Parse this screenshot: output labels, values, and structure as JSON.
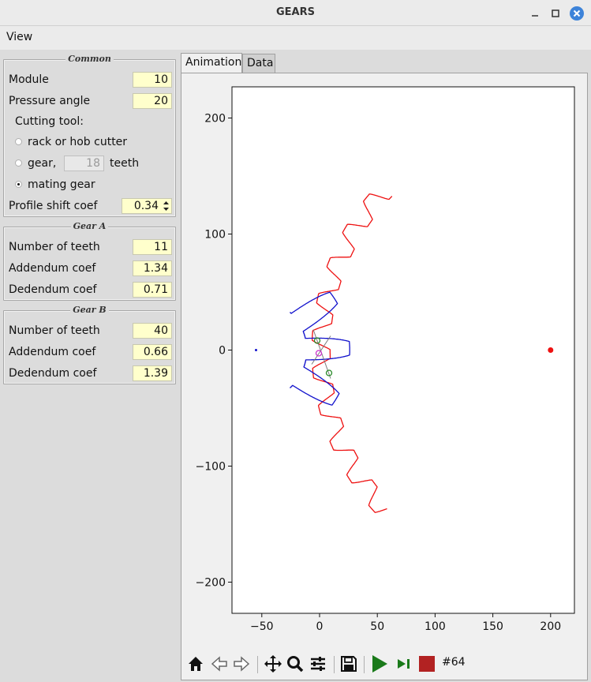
{
  "window": {
    "title": "GEARS"
  },
  "menu": {
    "view_label": "View"
  },
  "common": {
    "title": "Common",
    "module_label": "Module",
    "module_value": "10",
    "pressure_label": "Pressure angle",
    "pressure_value": "20",
    "cutting_tool_label": "Cutting tool:",
    "rack_label": "rack or hob cutter",
    "gear_label": "gear,",
    "gear_teeth_value": "18",
    "teeth_label": "teeth",
    "mating_label": "mating gear",
    "selected_tool": "mating gear",
    "profile_shift_label": "Profile shift coef",
    "profile_shift_value": "0.34"
  },
  "gear_a": {
    "title": "Gear A",
    "teeth_label": "Number of teeth",
    "teeth_value": "11",
    "addendum_label": "Addendum coef",
    "addendum_value": "1.34",
    "dedendum_label": "Dedendum coef",
    "dedendum_value": "0.71"
  },
  "gear_b": {
    "title": "Gear B",
    "teeth_label": "Number of teeth",
    "teeth_value": "40",
    "addendum_label": "Addendum coef",
    "addendum_value": "0.66",
    "dedendum_label": "Dedendum coef",
    "dedendum_value": "1.39"
  },
  "tabs": [
    {
      "label": "Animation",
      "active": true
    },
    {
      "label": "Data",
      "active": false
    }
  ],
  "toolbar": {
    "frame_label": "#64"
  },
  "icons": [
    "home-icon",
    "back-icon",
    "forward-icon",
    "pan-icon",
    "zoom-icon",
    "configure-icon",
    "save-icon",
    "play-icon",
    "step-icon",
    "stop-icon"
  ],
  "colors": {
    "gear_b": "#ee1111",
    "gear_a": "#1111cc",
    "field_bg": "#ffffcc",
    "play": "#1a7a1a",
    "stop": "#b22222"
  },
  "chart_data": {
    "type": "line",
    "xlim": [
      -75,
      220
    ],
    "ylim": [
      -225,
      225
    ],
    "xticks": [
      -50,
      0,
      50,
      100,
      150,
      200
    ],
    "yticks": [
      -200,
      -100,
      0,
      100,
      200
    ],
    "xtick_labels": [
      "−50",
      "0",
      "50",
      "100",
      "150",
      "200"
    ],
    "ytick_labels": [
      "−200",
      "−100",
      "0",
      "100",
      "200"
    ],
    "grid": false,
    "centers": [
      {
        "x": -55,
        "y": 0
      },
      {
        "x": 200,
        "y": 0
      }
    ],
    "gear_b": {
      "center_x": 200,
      "teeth": 40,
      "root_radius": 190.9,
      "tip_radius": 206.6,
      "start_deg": 136,
      "end_deg": 224
    },
    "gear_a": {
      "center_x": -55,
      "teeth": 11,
      "root_radius": 43.9,
      "tip_radius": 81.1,
      "start_deg": -48,
      "end_deg": 48
    }
  }
}
